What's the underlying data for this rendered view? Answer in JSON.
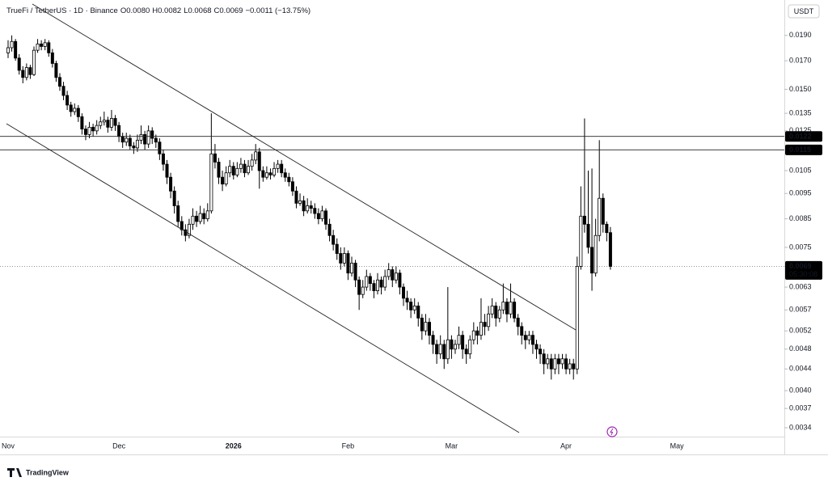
{
  "chart_data": {
    "type": "candlestick",
    "title": "TrueFi / TetherUS · 1D · Binance",
    "legend_items": [
      "O0.0080",
      "H0.0082",
      "L0.0068",
      "C0.0069",
      "−0.0011 (−13.75%)"
    ],
    "currency": "USDT",
    "brand": "TradingView",
    "log_scale": true,
    "up_color": "#ffffff",
    "down_color": "#000000",
    "edge_color": "#000000",
    "ylim": [
      0.00327,
      0.0218
    ],
    "yticks": [
      {
        "value": 0.019,
        "label": "0.0190"
      },
      {
        "value": 0.017,
        "label": "0.0170"
      },
      {
        "value": 0.015,
        "label": "0.0150"
      },
      0.0135,
      0.0125,
      0.0105,
      0.0095,
      0.0085,
      0.0075,
      0.0063,
      0.0057,
      0.0052,
      0.0048,
      0.0044,
      {
        "value": 0.004,
        "label": "0.0040"
      },
      0.0037,
      0.0034
    ],
    "levels": [
      0.0122,
      0.0115
    ],
    "last_price": 0.0069,
    "countdown": "05:30:08",
    "categories": [
      "Nov",
      null,
      null,
      null,
      null,
      null,
      null,
      null,
      null,
      null,
      null,
      null,
      null,
      null,
      null,
      null,
      null,
      null,
      null,
      null,
      null,
      null,
      null,
      null,
      null,
      null,
      null,
      null,
      null,
      null,
      "Dec",
      null,
      null,
      null,
      null,
      null,
      null,
      null,
      null,
      null,
      null,
      null,
      null,
      null,
      null,
      null,
      null,
      null,
      null,
      null,
      null,
      null,
      null,
      null,
      null,
      null,
      null,
      null,
      null,
      null,
      null,
      "2026",
      null,
      null,
      null,
      null,
      null,
      null,
      null,
      null,
      null,
      null,
      null,
      null,
      null,
      null,
      null,
      null,
      null,
      null,
      null,
      null,
      null,
      null,
      null,
      null,
      null,
      null,
      null,
      null,
      null,
      null,
      "Feb",
      null,
      null,
      null,
      null,
      null,
      null,
      null,
      null,
      null,
      null,
      null,
      null,
      null,
      null,
      null,
      null,
      null,
      null,
      null,
      null,
      null,
      null,
      null,
      null,
      null,
      null,
      null,
      "Mar",
      null,
      null,
      null,
      null,
      null,
      null,
      null,
      null,
      null,
      null,
      null,
      null,
      null,
      null,
      null,
      null,
      null,
      null,
      null,
      null,
      null,
      null,
      null,
      null,
      null,
      null,
      null,
      null,
      null,
      null,
      "Apr",
      null,
      null,
      null,
      null,
      null,
      null,
      null,
      null,
      null,
      null,
      null,
      null,
      null,
      null,
      null,
      null,
      null,
      null,
      null,
      null,
      null,
      null,
      null,
      null,
      null,
      null,
      null,
      null,
      null,
      "May"
    ],
    "ohlc": [
      [
        0.0176,
        0.0186,
        0.0172,
        0.018
      ],
      [
        0.018,
        0.019,
        0.0177,
        0.0185
      ],
      [
        0.0185,
        0.0187,
        0.017,
        0.0172
      ],
      [
        0.0172,
        0.0175,
        0.016,
        0.0163
      ],
      [
        0.0163,
        0.0166,
        0.0154,
        0.0158
      ],
      [
        0.0158,
        0.0168,
        0.0156,
        0.0165
      ],
      [
        0.0165,
        0.0167,
        0.0157,
        0.016
      ],
      [
        0.016,
        0.0181,
        0.0159,
        0.0178
      ],
      [
        0.0178,
        0.0187,
        0.0176,
        0.0183
      ],
      [
        0.0183,
        0.0186,
        0.0178,
        0.0181
      ],
      [
        0.0181,
        0.0187,
        0.0178,
        0.0184
      ],
      [
        0.0184,
        0.0186,
        0.0173,
        0.0176
      ],
      [
        0.0176,
        0.0179,
        0.0165,
        0.0168
      ],
      [
        0.0168,
        0.017,
        0.0155,
        0.0158
      ],
      [
        0.0158,
        0.0161,
        0.0149,
        0.0152
      ],
      [
        0.0152,
        0.0155,
        0.0143,
        0.0146
      ],
      [
        0.0146,
        0.0149,
        0.0137,
        0.014
      ],
      [
        0.014,
        0.0142,
        0.0133,
        0.0136
      ],
      [
        0.0136,
        0.0141,
        0.0134,
        0.0138
      ],
      [
        0.0138,
        0.014,
        0.013,
        0.0133
      ],
      [
        0.0133,
        0.0135,
        0.0123,
        0.0126
      ],
      [
        0.0126,
        0.0128,
        0.012,
        0.0123
      ],
      [
        0.0123,
        0.013,
        0.0121,
        0.0127
      ],
      [
        0.0127,
        0.0129,
        0.0122,
        0.0125
      ],
      [
        0.0125,
        0.0131,
        0.0123,
        0.0128
      ],
      [
        0.0128,
        0.0133,
        0.0126,
        0.013
      ],
      [
        0.013,
        0.0136,
        0.0128,
        0.0131
      ],
      [
        0.0131,
        0.0133,
        0.0124,
        0.0127
      ],
      [
        0.0127,
        0.0137,
        0.0125,
        0.0132
      ],
      [
        0.0132,
        0.0134,
        0.0125,
        0.0128
      ],
      [
        0.0128,
        0.013,
        0.0119,
        0.0122
      ],
      [
        0.0122,
        0.0124,
        0.0116,
        0.0119
      ],
      [
        0.0119,
        0.0124,
        0.0117,
        0.0121
      ],
      [
        0.0121,
        0.0123,
        0.0115,
        0.0117
      ],
      [
        0.0117,
        0.0119,
        0.0113,
        0.0116
      ],
      [
        0.0116,
        0.0123,
        0.0114,
        0.012
      ],
      [
        0.012,
        0.0128,
        0.0118,
        0.0123
      ],
      [
        0.0123,
        0.0125,
        0.0115,
        0.0118
      ],
      [
        0.0118,
        0.0128,
        0.0116,
        0.0125
      ],
      [
        0.0125,
        0.0127,
        0.0118,
        0.0121
      ],
      [
        0.0121,
        0.0123,
        0.0116,
        0.0119
      ],
      [
        0.0119,
        0.0121,
        0.011,
        0.0113
      ],
      [
        0.0113,
        0.0115,
        0.0105,
        0.0108
      ],
      [
        0.0108,
        0.011,
        0.0099,
        0.0102
      ],
      [
        0.0102,
        0.0104,
        0.0093,
        0.0096
      ],
      [
        0.0096,
        0.0098,
        0.0087,
        0.009
      ],
      [
        0.009,
        0.0092,
        0.0082,
        0.0084
      ],
      [
        0.0084,
        0.0086,
        0.0079,
        0.0081
      ],
      [
        0.0081,
        0.0083,
        0.0077,
        0.0079
      ],
      [
        0.0079,
        0.0085,
        0.0078,
        0.0083
      ],
      [
        0.0083,
        0.0089,
        0.0081,
        0.0086
      ],
      [
        0.0086,
        0.0088,
        0.0082,
        0.0084
      ],
      [
        0.0084,
        0.009,
        0.0083,
        0.0087
      ],
      [
        0.0087,
        0.0089,
        0.0083,
        0.0085
      ],
      [
        0.0085,
        0.0091,
        0.0084,
        0.0088
      ],
      [
        0.0088,
        0.0135,
        0.0087,
        0.0113
      ],
      [
        0.0113,
        0.0118,
        0.0106,
        0.0109
      ],
      [
        0.0109,
        0.0111,
        0.0099,
        0.0102
      ],
      [
        0.0102,
        0.0105,
        0.0096,
        0.0099
      ],
      [
        0.0099,
        0.0107,
        0.0098,
        0.0104
      ],
      [
        0.0104,
        0.011,
        0.0102,
        0.0107
      ],
      [
        0.0107,
        0.0109,
        0.0101,
        0.0103
      ],
      [
        0.0103,
        0.0109,
        0.0102,
        0.0106
      ],
      [
        0.0106,
        0.0111,
        0.0104,
        0.0108
      ],
      [
        0.0108,
        0.011,
        0.0102,
        0.0104
      ],
      [
        0.0104,
        0.011,
        0.0103,
        0.0107
      ],
      [
        0.0107,
        0.0113,
        0.0105,
        0.011
      ],
      [
        0.011,
        0.0118,
        0.0108,
        0.0114
      ],
      [
        0.0114,
        0.0116,
        0.0097,
        0.0105
      ],
      [
        0.0105,
        0.0107,
        0.01,
        0.0102
      ],
      [
        0.0102,
        0.0107,
        0.0101,
        0.0104
      ],
      [
        0.0104,
        0.0106,
        0.0101,
        0.0103
      ],
      [
        0.0103,
        0.0109,
        0.0102,
        0.0106
      ],
      [
        0.0106,
        0.011,
        0.0104,
        0.0108
      ],
      [
        0.0108,
        0.011,
        0.0102,
        0.0104
      ],
      [
        0.0104,
        0.0106,
        0.01,
        0.0102
      ],
      [
        0.0102,
        0.0104,
        0.0098,
        0.01
      ],
      [
        0.01,
        0.0102,
        0.0094,
        0.0096
      ],
      [
        0.0096,
        0.0098,
        0.0089,
        0.0091
      ],
      [
        0.0091,
        0.0095,
        0.009,
        0.0092
      ],
      [
        0.0092,
        0.0094,
        0.0086,
        0.0088
      ],
      [
        0.0088,
        0.0093,
        0.0087,
        0.009
      ],
      [
        0.009,
        0.0092,
        0.0087,
        0.0089
      ],
      [
        0.0089,
        0.0091,
        0.0085,
        0.0087
      ],
      [
        0.0087,
        0.0089,
        0.0083,
        0.0085
      ],
      [
        0.0085,
        0.009,
        0.0084,
        0.0088
      ],
      [
        0.0088,
        0.0089,
        0.0081,
        0.0083
      ],
      [
        0.0083,
        0.0085,
        0.0077,
        0.0079
      ],
      [
        0.0079,
        0.0081,
        0.0074,
        0.0076
      ],
      [
        0.0076,
        0.0078,
        0.0071,
        0.0073
      ],
      [
        0.0073,
        0.0075,
        0.0068,
        0.007
      ],
      [
        0.007,
        0.0075,
        0.0069,
        0.0073
      ],
      [
        0.0073,
        0.0074,
        0.0065,
        0.0067
      ],
      [
        0.0067,
        0.0072,
        0.0066,
        0.007
      ],
      [
        0.007,
        0.0071,
        0.0063,
        0.0065
      ],
      [
        0.0065,
        0.0066,
        0.0057,
        0.0061
      ],
      [
        0.0061,
        0.0065,
        0.006,
        0.0063
      ],
      [
        0.0063,
        0.0068,
        0.0062,
        0.0066
      ],
      [
        0.0066,
        0.0067,
        0.0062,
        0.0064
      ],
      [
        0.0064,
        0.0065,
        0.006,
        0.0062
      ],
      [
        0.0062,
        0.0067,
        0.0061,
        0.0065
      ],
      [
        0.0065,
        0.0066,
        0.0061,
        0.0063
      ],
      [
        0.0063,
        0.0068,
        0.0062,
        0.0066
      ],
      [
        0.0066,
        0.007,
        0.0065,
        0.0068
      ],
      [
        0.0068,
        0.0069,
        0.0063,
        0.0065
      ],
      [
        0.0065,
        0.0069,
        0.0064,
        0.0067
      ],
      [
        0.0067,
        0.0068,
        0.0061,
        0.0063
      ],
      [
        0.0063,
        0.0064,
        0.0058,
        0.006
      ],
      [
        0.006,
        0.0062,
        0.0057,
        0.0059
      ],
      [
        0.0059,
        0.006,
        0.0055,
        0.0057
      ],
      [
        0.0057,
        0.006,
        0.0056,
        0.0058
      ],
      [
        0.0058,
        0.0059,
        0.0053,
        0.0055
      ],
      [
        0.0055,
        0.0056,
        0.005,
        0.0052
      ],
      [
        0.0052,
        0.0056,
        0.0051,
        0.0054
      ],
      [
        0.0054,
        0.0055,
        0.0049,
        0.0051
      ],
      [
        0.0051,
        0.0052,
        0.0047,
        0.0049
      ],
      [
        0.0049,
        0.005,
        0.0045,
        0.0047
      ],
      [
        0.0047,
        0.0051,
        0.0046,
        0.0049
      ],
      [
        0.0049,
        0.005,
        0.0044,
        0.0046
      ],
      [
        0.0046,
        0.0063,
        0.0045,
        0.005
      ],
      [
        0.005,
        0.0051,
        0.0046,
        0.0048
      ],
      [
        0.0048,
        0.005,
        0.0047,
        0.0049
      ],
      [
        0.0049,
        0.0053,
        0.0048,
        0.0051
      ],
      [
        0.0051,
        0.0052,
        0.0046,
        0.0048
      ],
      [
        0.0048,
        0.0049,
        0.0045,
        0.0047
      ],
      [
        0.0047,
        0.0051,
        0.0046,
        0.005
      ],
      [
        0.005,
        0.0054,
        0.0049,
        0.0052
      ],
      [
        0.0052,
        0.0053,
        0.0049,
        0.0051
      ],
      [
        0.0051,
        0.006,
        0.005,
        0.0054
      ],
      [
        0.0054,
        0.0056,
        0.0051,
        0.0053
      ],
      [
        0.0053,
        0.0058,
        0.0052,
        0.0056
      ],
      [
        0.0056,
        0.006,
        0.0055,
        0.0058
      ],
      [
        0.0058,
        0.0059,
        0.0053,
        0.0055
      ],
      [
        0.0055,
        0.0058,
        0.0054,
        0.0057
      ],
      [
        0.0057,
        0.0064,
        0.0056,
        0.0059
      ],
      [
        0.0059,
        0.006,
        0.0054,
        0.0056
      ],
      [
        0.0056,
        0.0064,
        0.0055,
        0.0059
      ],
      [
        0.0059,
        0.006,
        0.0054,
        0.0055
      ],
      [
        0.0055,
        0.0056,
        0.0051,
        0.0053
      ],
      [
        0.0053,
        0.0054,
        0.0049,
        0.0051
      ],
      [
        0.0051,
        0.0052,
        0.0048,
        0.005
      ],
      [
        0.005,
        0.0052,
        0.0049,
        0.0051
      ],
      [
        0.0051,
        0.0052,
        0.0047,
        0.0049
      ],
      [
        0.0049,
        0.005,
        0.0046,
        0.0048
      ],
      [
        0.0048,
        0.0049,
        0.0045,
        0.0047
      ],
      [
        0.0047,
        0.0048,
        0.0043,
        0.0045
      ],
      [
        0.0045,
        0.0047,
        0.0044,
        0.0046
      ],
      [
        0.0046,
        0.0047,
        0.0042,
        0.0044
      ],
      [
        0.0044,
        0.0047,
        0.0043,
        0.0046
      ],
      [
        0.0046,
        0.0047,
        0.0043,
        0.0045
      ],
      [
        0.0045,
        0.0047,
        0.0044,
        0.0046
      ],
      [
        0.0046,
        0.0047,
        0.0043,
        0.0044
      ],
      [
        0.0044,
        0.0046,
        0.0043,
        0.0045
      ],
      [
        0.0045,
        0.0046,
        0.0042,
        0.0044
      ],
      [
        0.0044,
        0.0072,
        0.0043,
        0.0069
      ],
      [
        0.0069,
        0.0098,
        0.0068,
        0.0086
      ],
      [
        0.0086,
        0.0132,
        0.008,
        0.0083
      ],
      [
        0.0083,
        0.0105,
        0.0073,
        0.0075
      ],
      [
        0.0075,
        0.0106,
        0.0062,
        0.0067
      ],
      [
        0.0067,
        0.0085,
        0.0066,
        0.0079
      ],
      [
        0.0079,
        0.012,
        0.0077,
        0.0093
      ],
      [
        0.0093,
        0.0095,
        0.008,
        0.0083
      ],
      [
        0.0083,
        0.0084,
        0.0077,
        0.008
      ],
      [
        0.008,
        0.0082,
        0.0068,
        0.0069
      ],
      null,
      null,
      null,
      null,
      null,
      null,
      null,
      null,
      null,
      null,
      null,
      null,
      null,
      null,
      null,
      null,
      null,
      null
    ]
  }
}
